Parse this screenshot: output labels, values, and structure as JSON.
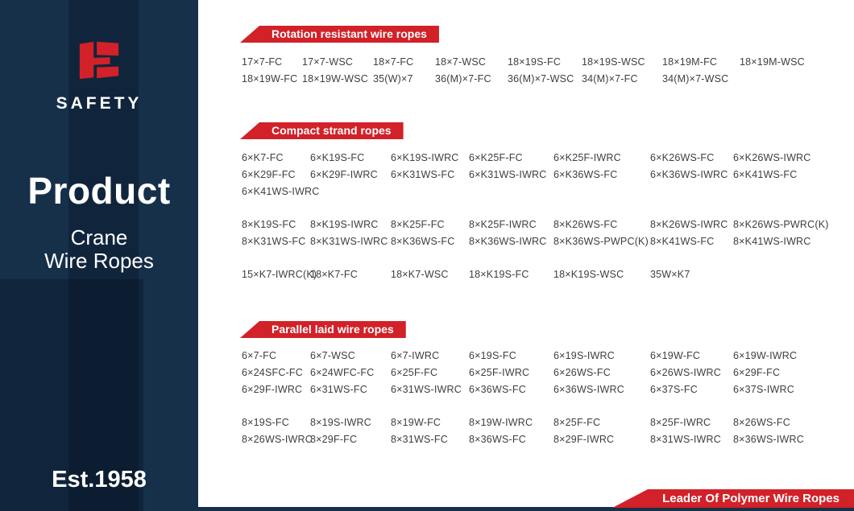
{
  "sidebar": {
    "brand": "SAFETY",
    "title": "Product",
    "subtitle_line1": "Crane",
    "subtitle_line2": "Wire Ropes",
    "established": "Est.1958"
  },
  "sections": [
    {
      "title": "Rotation resistant wire ropes",
      "groups": [
        {
          "rows": [
            [
              "17×7-FC",
              "17×7-WSC",
              "18×7-FC",
              "18×7-WSC",
              "18×19S-FC",
              "18×19S-WSC",
              "18×19M-FC",
              "18×19M-WSC"
            ],
            [
              "18×19W-FC",
              "18×19W-WSC",
              "35(W)×7",
              "36(M)×7-FC",
              "36(M)×7-WSC",
              "34(M)×7-FC",
              "34(M)×7-WSC"
            ]
          ]
        }
      ]
    },
    {
      "title": "Compact strand ropes",
      "groups": [
        {
          "rows": [
            [
              "6×K7-FC",
              "6×K19S-FC",
              "6×K19S-IWRC",
              "6×K25F-FC",
              "6×K25F-IWRC",
              "6×K26WS-FC",
              "6×K26WS-IWRC"
            ],
            [
              "6×K29F-FC",
              "6×K29F-IWRC",
              "6×K31WS-FC",
              "6×K31WS-IWRC",
              "6×K36WS-FC",
              "6×K36WS-IWRC",
              "6×K41WS-FC"
            ],
            [
              "6×K41WS-IWRC"
            ]
          ]
        },
        {
          "rows": [
            [
              "8×K19S-FC",
              "8×K19S-IWRC",
              "8×K25F-FC",
              "8×K25F-IWRC",
              "8×K26WS-FC",
              "8×K26WS-IWRC",
              "8×K26WS-PWRC(K)"
            ],
            [
              "8×K31WS-FC",
              "8×K31WS-IWRC",
              "8×K36WS-FC",
              "8×K36WS-IWRC",
              "8×K36WS-PWPC(K)",
              "8×K41WS-FC",
              "8×K41WS-IWRC"
            ]
          ]
        },
        {
          "rows": [
            [
              "15×K7-IWRC(K)",
              "18×K7-FC",
              "18×K7-WSC",
              "18×K19S-FC",
              "18×K19S-WSC",
              "35W×K7"
            ]
          ]
        }
      ]
    },
    {
      "title": "Parallel laid wire ropes",
      "groups": [
        {
          "rows": [
            [
              "6×7-FC",
              "6×7-WSC",
              "6×7-IWRC",
              "6×19S-FC",
              "6×19S-IWRC",
              "6×19W-FC",
              "6×19W-IWRC"
            ],
            [
              "6×24SFC-FC",
              "6×24WFC-FC",
              "6×25F-FC",
              "6×25F-IWRC",
              "6×26WS-FC",
              "6×26WS-IWRC",
              "6×29F-FC"
            ],
            [
              "6×29F-IWRC",
              "6×31WS-FC",
              "6×31WS-IWRC",
              "6×36WS-FC",
              "6×36WS-IWRC",
              "6×37S-FC",
              "6×37S-IWRC"
            ]
          ]
        },
        {
          "rows": [
            [
              "8×19S-FC",
              "8×19S-IWRC",
              "8×19W-FC",
              "8×19W-IWRC",
              "8×25F-FC",
              "8×25F-IWRC",
              "8×26WS-FC"
            ],
            [
              "8×26WS-IWRC",
              "8×29F-FC",
              "8×31WS-FC",
              "8×36WS-FC",
              "8×29F-IWRC",
              "8×31WS-IWRC",
              "8×36WS-IWRC"
            ]
          ]
        }
      ]
    }
  ],
  "footer": {
    "banner_label": "Leader Of Polymer Wire Ropes"
  },
  "colors": {
    "red": "#d22128",
    "navy": "#16304a",
    "code_text": "#3e3e40"
  }
}
